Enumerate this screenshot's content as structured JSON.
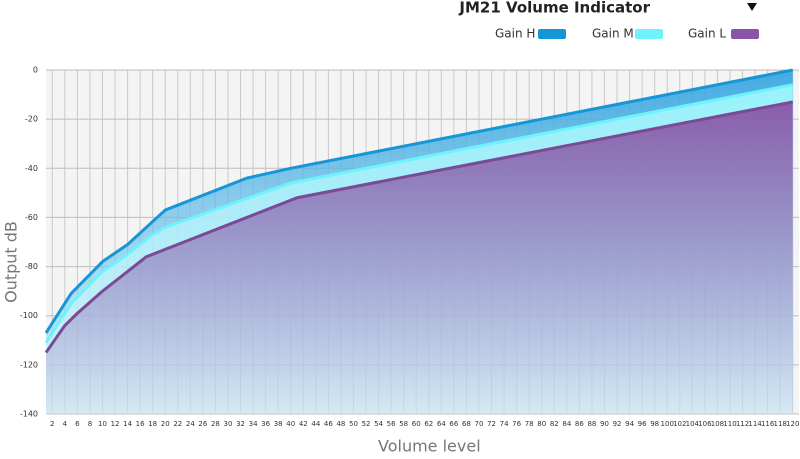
{
  "chart_data": {
    "type": "area",
    "title": "JM21 Volume Indicator",
    "x_label": "Volume level",
    "y_label": "Output  dB",
    "legend": "top-right",
    "grid": true,
    "xlim": [
      1,
      121
    ],
    "ylim": [
      -140,
      0
    ],
    "xticks": [
      2,
      4,
      6,
      8,
      10,
      12,
      14,
      16,
      18,
      20,
      22,
      24,
      26,
      28,
      30,
      32,
      34,
      36,
      38,
      40,
      42,
      44,
      46,
      48,
      50,
      52,
      54,
      56,
      58,
      60,
      62,
      64,
      66,
      68,
      70,
      72,
      74,
      76,
      78,
      80,
      82,
      84,
      86,
      88,
      90,
      92,
      94,
      96,
      98,
      100,
      102,
      104,
      106,
      108,
      110,
      112,
      114,
      116,
      118,
      120
    ],
    "yticks": [
      -140,
      -120,
      -100,
      -80,
      -60,
      -40,
      -20,
      0
    ],
    "series": [
      {
        "name": "Gain H",
        "color": "#1596d6",
        "x": [
          1,
          5,
          10,
          14,
          20,
          33,
          40,
          120
        ],
        "values": [
          -107,
          -91,
          -78,
          -71,
          -57,
          -44,
          -40,
          0
        ]
      },
      {
        "name": "Gain M",
        "color": "#6ef3fc",
        "x": [
          1,
          5,
          10,
          14,
          18,
          20,
          40,
          120
        ],
        "values": [
          -111,
          -95,
          -82,
          -75,
          -67,
          -64,
          -46,
          -6
        ]
      },
      {
        "name": "Gain L",
        "color": "#8a55a6",
        "x": [
          1,
          4,
          6,
          10,
          17,
          41,
          120
        ],
        "values": [
          -115,
          -104,
          -99,
          -90,
          -76,
          -52,
          -13
        ]
      }
    ]
  }
}
